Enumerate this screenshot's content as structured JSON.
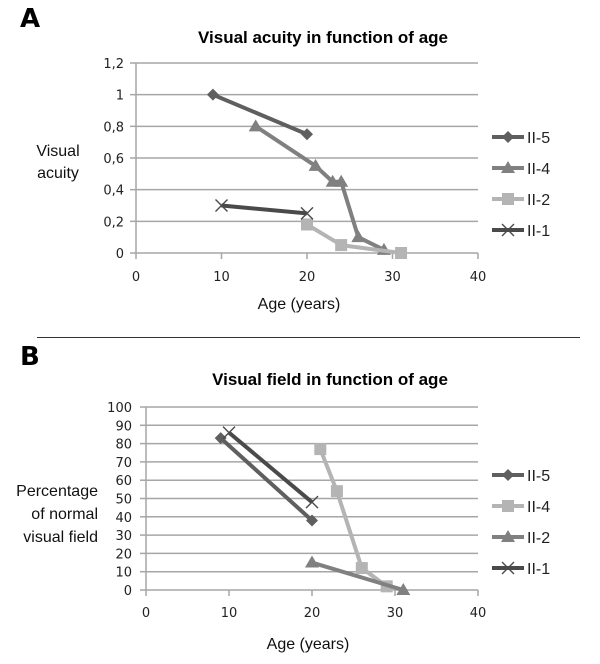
{
  "panels": [
    "A",
    "B"
  ],
  "chart_data": [
    {
      "type": "line",
      "panel": "A",
      "title": "Visual acuity in function of age",
      "xlabel": "Age (years)",
      "ylabel": [
        "Visual",
        "acuity"
      ],
      "xlim": [
        0,
        40
      ],
      "ylim": [
        0,
        1.2
      ],
      "xticks": [
        0,
        10,
        20,
        30,
        40
      ],
      "xtick_labels": [
        "0",
        "10",
        "20",
        "30",
        "40"
      ],
      "yticks": [
        0,
        0.2,
        0.4,
        0.6,
        0.8,
        1.0,
        1.2
      ],
      "ytick_labels": [
        "0",
        "0,2",
        "0,4",
        "0,6",
        "0,8",
        "1",
        "1,2"
      ],
      "grid": true,
      "legend_position": "right",
      "series": [
        {
          "name": "II-5",
          "marker": "diamond",
          "color": "#5f5f5f",
          "x": [
            9,
            20
          ],
          "y": [
            1.0,
            0.75
          ]
        },
        {
          "name": "II-4",
          "marker": "triangle",
          "color": "#808080",
          "x": [
            14,
            21,
            23,
            24,
            26,
            29
          ],
          "y": [
            0.8,
            0.55,
            0.45,
            0.45,
            0.1,
            0.02
          ]
        },
        {
          "name": "II-2",
          "marker": "square",
          "color": "#b4b4b4",
          "x": [
            20,
            24,
            31
          ],
          "y": [
            0.18,
            0.05,
            0.0
          ]
        },
        {
          "name": "II-1",
          "marker": "x",
          "color": "#4a4a4a",
          "x": [
            10,
            20
          ],
          "y": [
            0.3,
            0.25
          ]
        }
      ]
    },
    {
      "type": "line",
      "panel": "B",
      "title": "Visual field in function of age",
      "xlabel": "Age (years)",
      "ylabel": [
        "Percentage",
        "of normal",
        "visual field"
      ],
      "xlim": [
        0,
        40
      ],
      "ylim": [
        0,
        100
      ],
      "xticks": [
        0,
        10,
        20,
        30,
        40
      ],
      "xtick_labels": [
        "0",
        "10",
        "20",
        "30",
        "40"
      ],
      "yticks": [
        0,
        10,
        20,
        30,
        40,
        50,
        60,
        70,
        80,
        90,
        100
      ],
      "ytick_labels": [
        "0",
        "10",
        "20",
        "30",
        "40",
        "50",
        "60",
        "70",
        "80",
        "90",
        "100"
      ],
      "grid": true,
      "legend_position": "right",
      "series": [
        {
          "name": "II-5",
          "marker": "diamond",
          "color": "#5f5f5f",
          "x": [
            9,
            20
          ],
          "y": [
            83,
            38
          ]
        },
        {
          "name": "II-4",
          "marker": "square",
          "color": "#b4b4b4",
          "x": [
            21,
            23,
            26,
            29
          ],
          "y": [
            77,
            54,
            12,
            2
          ]
        },
        {
          "name": "II-2",
          "marker": "triangle",
          "color": "#808080",
          "x": [
            20,
            31
          ],
          "y": [
            15,
            0
          ]
        },
        {
          "name": "II-1",
          "marker": "x",
          "color": "#4a4a4a",
          "x": [
            10,
            20
          ],
          "y": [
            86,
            48
          ]
        }
      ]
    }
  ]
}
